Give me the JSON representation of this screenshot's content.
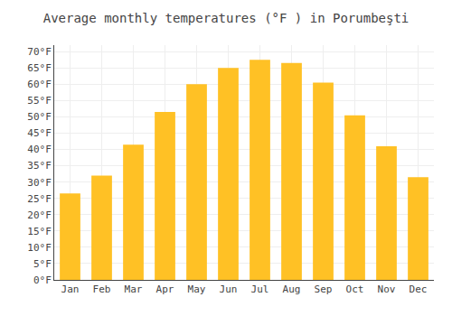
{
  "chart_data": {
    "type": "bar",
    "title": "Average monthly temperatures (°F ) in Porumbeşti",
    "categories": [
      "Jan",
      "Feb",
      "Mar",
      "Apr",
      "May",
      "Jun",
      "Jul",
      "Aug",
      "Sep",
      "Oct",
      "Nov",
      "Dec"
    ],
    "values": [
      26.5,
      32.0,
      41.5,
      51.5,
      60.0,
      65.0,
      67.5,
      66.5,
      60.5,
      50.5,
      41.0,
      31.5
    ],
    "color": "#FFC125",
    "ylim": [
      0,
      72
    ],
    "yticks": [
      {
        "value": 0,
        "label": "0°F"
      },
      {
        "value": 5,
        "label": "5°F"
      },
      {
        "value": 10,
        "label": "10°F"
      },
      {
        "value": 15,
        "label": "15°F"
      },
      {
        "value": 20,
        "label": "20°F"
      },
      {
        "value": 25,
        "label": "25°F"
      },
      {
        "value": 30,
        "label": "30°F"
      },
      {
        "value": 35,
        "label": "35°F"
      },
      {
        "value": 40,
        "label": "40°F"
      },
      {
        "value": 45,
        "label": "45°F"
      },
      {
        "value": 50,
        "label": "50°F"
      },
      {
        "value": 55,
        "label": "55°F"
      },
      {
        "value": 60,
        "label": "60°F"
      },
      {
        "value": 65,
        "label": "65°F"
      },
      {
        "value": 70,
        "label": "70°F"
      }
    ],
    "grid": true
  }
}
